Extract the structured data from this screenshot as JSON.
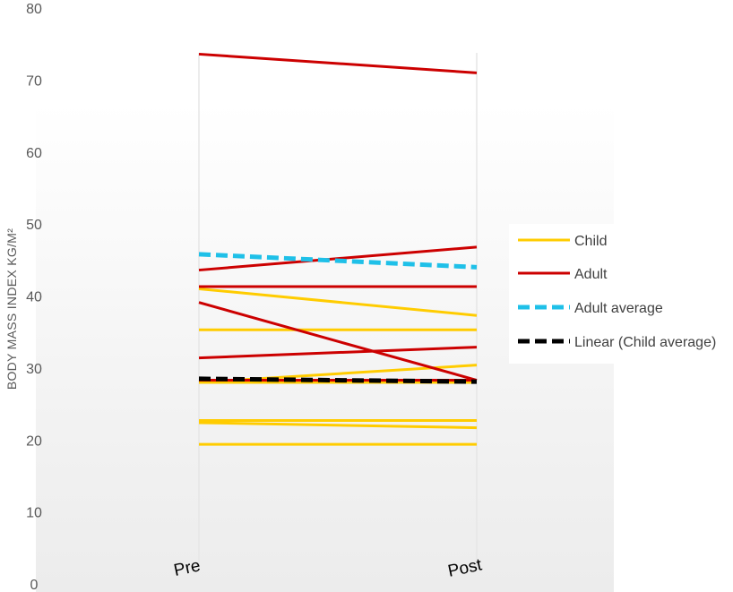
{
  "chart_data": {
    "type": "line",
    "ylabel": "BODY MASS INDEX KG/M²",
    "xlabel": "",
    "ylim": [
      0,
      80
    ],
    "yticks": [
      0,
      10,
      20,
      30,
      40,
      50,
      60,
      70,
      80
    ],
    "categories": [
      "Pre",
      "Post"
    ],
    "legend_position": "right",
    "grid": false,
    "colors": {
      "child": "#FFCC00",
      "adult": "#CC0000",
      "adult_average": "#1FC0E8",
      "child_average": "#000000",
      "vertical_lines": "#E6E6E6"
    },
    "legend": [
      {
        "key": "child",
        "label": "Child"
      },
      {
        "key": "adult",
        "label": "Adult"
      },
      {
        "key": "adult_average",
        "label": "Adult average"
      },
      {
        "key": "child_average",
        "label": "Linear (Child average)"
      }
    ],
    "series": [
      {
        "group": "child",
        "values": [
          19.4,
          19.4
        ]
      },
      {
        "group": "child",
        "values": [
          22.4,
          21.7
        ]
      },
      {
        "group": "child",
        "values": [
          22.7,
          22.7
        ]
      },
      {
        "group": "child",
        "values": [
          28.0,
          28.0
        ]
      },
      {
        "group": "child",
        "values": [
          28.0,
          30.4
        ]
      },
      {
        "group": "child",
        "values": [
          35.3,
          35.3
        ]
      },
      {
        "group": "child",
        "values": [
          41.0,
          37.3
        ]
      },
      {
        "group": "adult",
        "values": [
          28.3,
          28.3
        ]
      },
      {
        "group": "adult",
        "values": [
          39.1,
          28.3
        ]
      },
      {
        "group": "adult",
        "values": [
          31.4,
          32.9
        ]
      },
      {
        "group": "adult",
        "values": [
          41.3,
          41.3
        ]
      },
      {
        "group": "adult",
        "values": [
          43.6,
          46.8
        ]
      },
      {
        "group": "adult",
        "values": [
          73.6,
          71.0
        ]
      },
      {
        "group": "adult_average",
        "values": [
          45.8,
          44.0
        ]
      },
      {
        "group": "child_average",
        "values": [
          28.5,
          28.1
        ]
      }
    ]
  }
}
